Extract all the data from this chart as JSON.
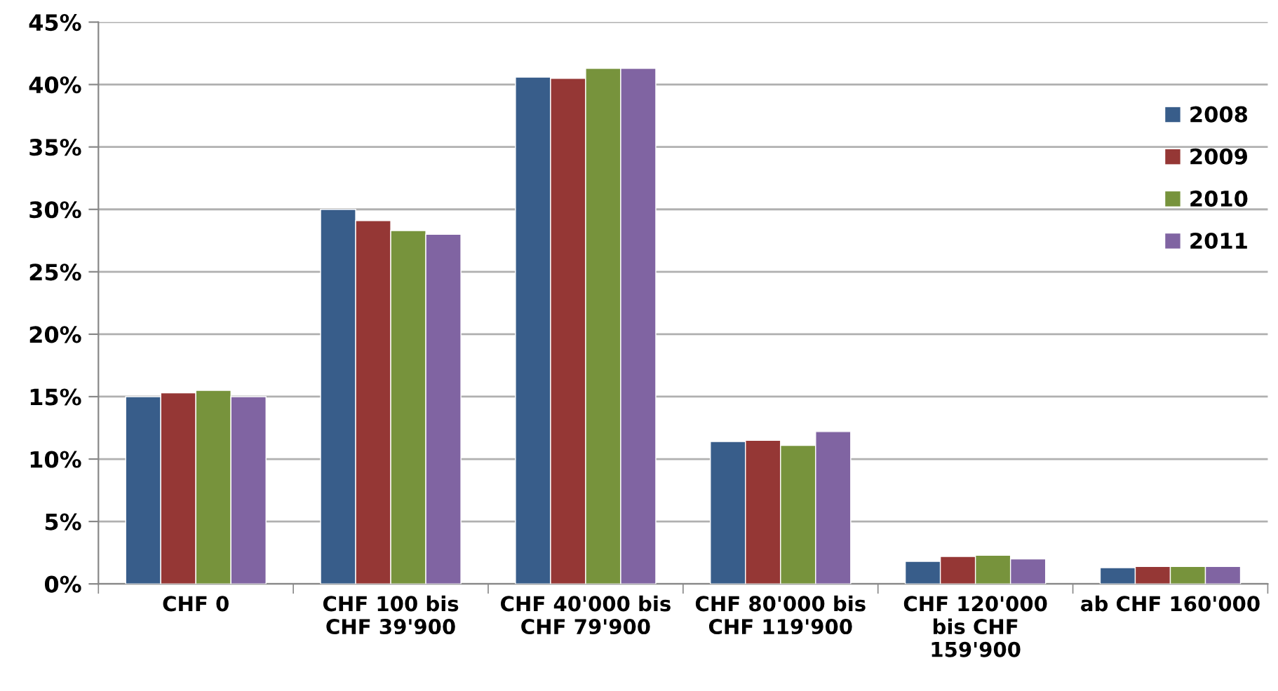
{
  "chart_data": {
    "type": "bar",
    "categories": [
      "CHF 0",
      "CHF 100 bis\nCHF 39'900",
      "CHF 40'000 bis\nCHF 79'900",
      "CHF 80'000 bis\nCHF 119'900",
      "CHF 120'000\nbis CHF\n159'900",
      "ab CHF 160'000"
    ],
    "series": [
      {
        "name": "2008",
        "color": "#385d8a",
        "values": [
          15.0,
          30.0,
          40.6,
          11.4,
          1.8,
          1.3
        ]
      },
      {
        "name": "2009",
        "color": "#953735",
        "values": [
          15.3,
          29.1,
          40.5,
          11.5,
          2.2,
          1.4
        ]
      },
      {
        "name": "2010",
        "color": "#77933c",
        "values": [
          15.5,
          28.3,
          41.3,
          11.1,
          2.3,
          1.4
        ]
      },
      {
        "name": "2011",
        "color": "#8064a2",
        "values": [
          15.0,
          28.0,
          41.3,
          12.2,
          2.0,
          1.4
        ]
      }
    ],
    "ylim": [
      0,
      45
    ],
    "yticks": [
      {
        "value": 0,
        "label": "0%"
      },
      {
        "value": 5,
        "label": "5%"
      },
      {
        "value": 10,
        "label": "10%"
      },
      {
        "value": 15,
        "label": "15%"
      },
      {
        "value": 20,
        "label": "20%"
      },
      {
        "value": 25,
        "label": "25%"
      },
      {
        "value": 30,
        "label": "30%"
      },
      {
        "value": 35,
        "label": "35%"
      },
      {
        "value": 40,
        "label": "40%"
      },
      {
        "value": 45,
        "label": "45%"
      }
    ],
    "grid": "y",
    "legend": "right"
  }
}
